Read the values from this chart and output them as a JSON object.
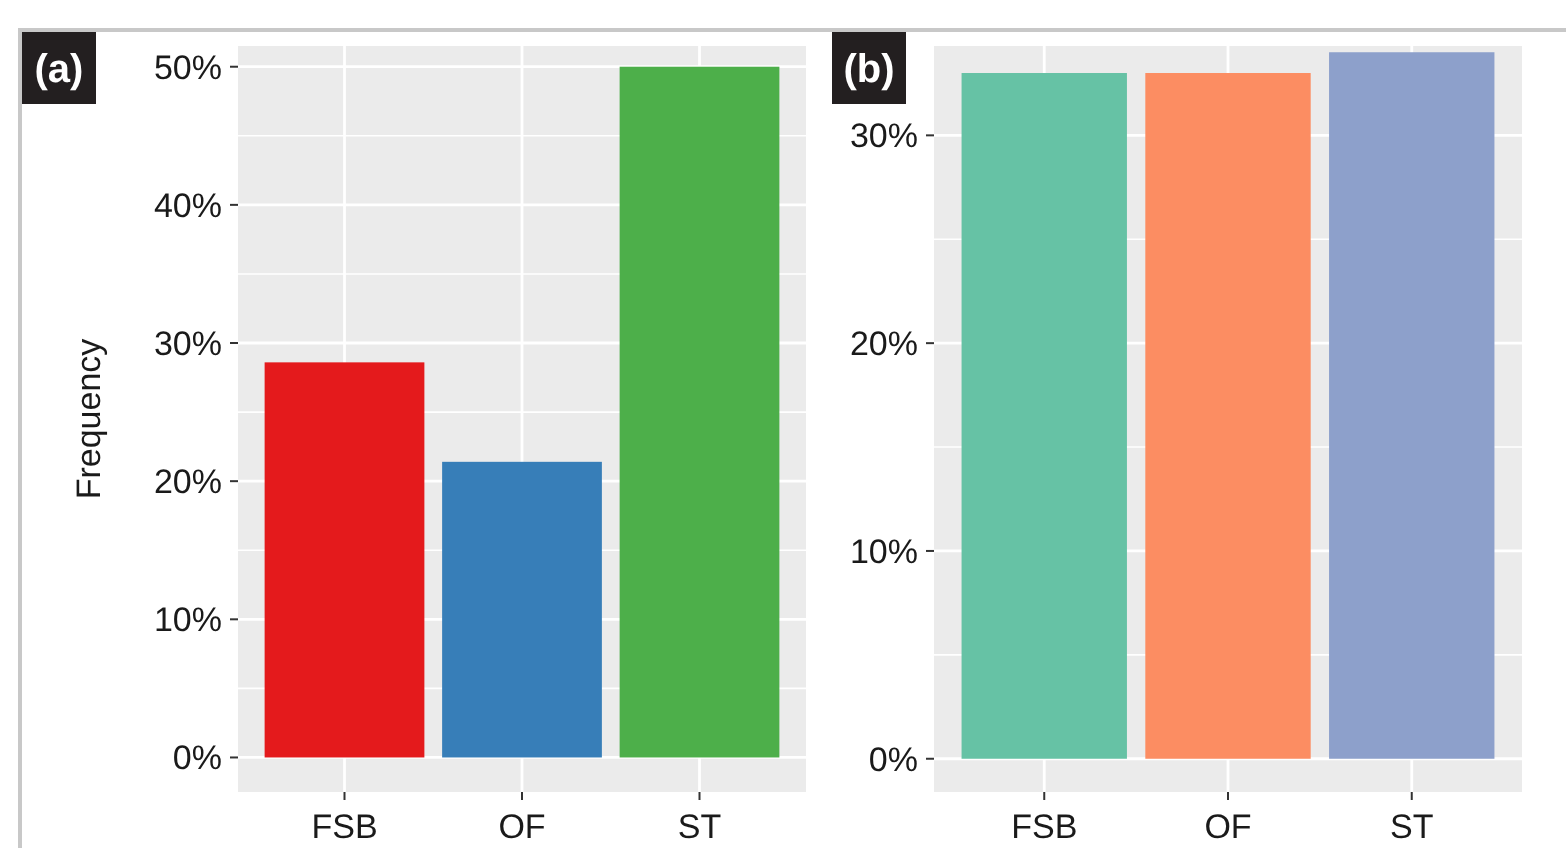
{
  "chart_data": [
    {
      "type": "bar",
      "title": "(a)",
      "ylabel": "Frequency",
      "categories": [
        "FSB",
        "OF",
        "ST"
      ],
      "values": [
        28.6,
        21.4,
        50
      ],
      "colors": [
        "#e41a1c",
        "#377eb8",
        "#4daf4a"
      ],
      "ylim": [
        -2.5,
        51.5
      ],
      "yticks": [
        {
          "value": 0,
          "label": "0%"
        },
        {
          "value": 10,
          "label": "10%"
        },
        {
          "value": 20,
          "label": "20%"
        },
        {
          "value": 30,
          "label": "30%"
        },
        {
          "value": 40,
          "label": "40%"
        },
        {
          "value": 50,
          "label": "50%"
        }
      ],
      "grid": true
    },
    {
      "type": "bar",
      "title": "(b)",
      "categories": [
        "FSB",
        "OF",
        "ST"
      ],
      "values": [
        33,
        33,
        34
      ],
      "colors": [
        "#66c2a5",
        "#fc8d62",
        "#8da0cb"
      ],
      "ylim": [
        -1.6,
        34.3
      ],
      "yticks": [
        {
          "value": 0,
          "label": "0%"
        },
        {
          "value": 10,
          "label": "10%"
        },
        {
          "value": 20,
          "label": "20%"
        },
        {
          "value": 30,
          "label": "30%"
        }
      ],
      "grid": true
    }
  ]
}
